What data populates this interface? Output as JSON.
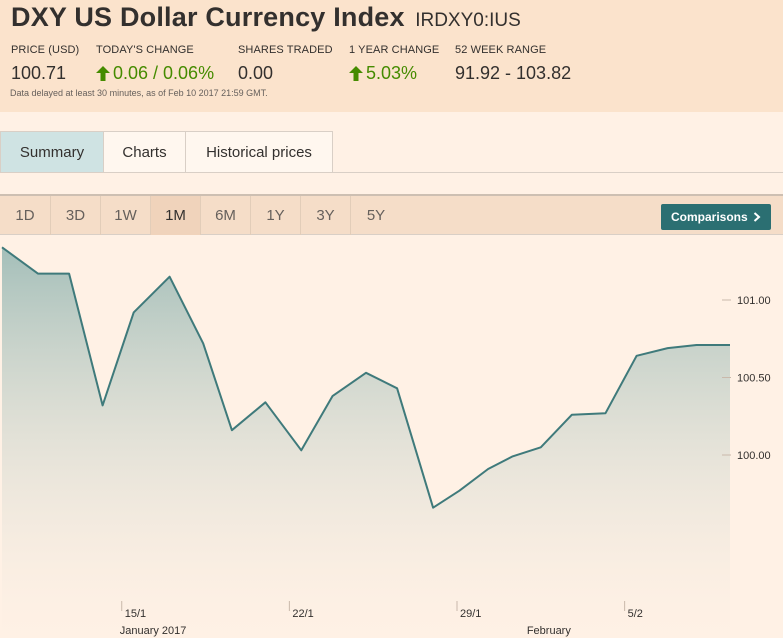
{
  "header": {
    "title": "DXY US Dollar Currency Index",
    "symbol": "IRDXY0:IUS",
    "stats": [
      {
        "label": "PRICE (USD)",
        "value": "100.71",
        "direction": "none"
      },
      {
        "label": "TODAY'S CHANGE",
        "value": "0.06 / 0.06%",
        "direction": "up"
      },
      {
        "label": "SHARES TRADED",
        "value": "0.00",
        "direction": "none"
      },
      {
        "label": "1 YEAR CHANGE",
        "value": "5.03%",
        "direction": "up"
      },
      {
        "label": "52 WEEK RANGE",
        "value": "91.92 - 103.82",
        "direction": "none"
      }
    ],
    "delay_note": "Data delayed at least 30 minutes, as of Feb 10 2017 21:59 GMT."
  },
  "tabs": [
    {
      "label": "Summary",
      "active": true
    },
    {
      "label": "Charts",
      "active": false
    },
    {
      "label": "Historical prices",
      "active": false
    }
  ],
  "ranges": [
    {
      "label": "1D",
      "active": false
    },
    {
      "label": "3D",
      "active": false
    },
    {
      "label": "1W",
      "active": false
    },
    {
      "label": "1M",
      "active": true
    },
    {
      "label": "6M",
      "active": false
    },
    {
      "label": "1Y",
      "active": false
    },
    {
      "label": "3Y",
      "active": false
    },
    {
      "label": "5Y",
      "active": false
    }
  ],
  "comparisons": {
    "label": "Comparisons",
    "icon": "chevron-right-icon"
  },
  "colors": {
    "up": "#458b00",
    "line": "#3f7a7b",
    "accent": "#2b6f72"
  },
  "chart_data": {
    "type": "area",
    "title": "",
    "xlabel": "",
    "ylabel": "",
    "ylim": [
      99.5,
      101.4
    ],
    "y_ticks": [
      {
        "label": "101.00",
        "value": 101.0
      },
      {
        "label": "100.50",
        "value": 100.5
      },
      {
        "label": "100.00",
        "value": 100.0
      }
    ],
    "x_ticks": [
      {
        "label": "15/1",
        "day": 5
      },
      {
        "label": "22/1",
        "day": 12
      },
      {
        "label": "29/1",
        "day": 19
      },
      {
        "label": "5/2",
        "day": 26
      }
    ],
    "month_labels": [
      {
        "label": "January 2017",
        "day": 5
      },
      {
        "label": "February",
        "day": 22
      }
    ],
    "x": [
      "2017-01-10",
      "2017-01-11",
      "2017-01-12",
      "2017-01-13",
      "2017-01-16",
      "2017-01-17",
      "2017-01-18",
      "2017-01-19",
      "2017-01-20",
      "2017-01-23",
      "2017-01-24",
      "2017-01-25",
      "2017-01-26",
      "2017-01-27",
      "2017-01-30",
      "2017-01-31",
      "2017-02-01",
      "2017-02-02",
      "2017-02-03",
      "2017-02-06",
      "2017-02-07",
      "2017-02-08",
      "2017-02-09",
      "2017-02-10"
    ],
    "x_day": [
      0.0,
      1.5,
      2.8,
      4.2,
      5.5,
      7.0,
      8.4,
      9.6,
      11.0,
      12.5,
      13.8,
      15.2,
      16.5,
      18.0,
      19.1,
      20.3,
      21.3,
      22.5,
      23.8,
      25.2,
      26.5,
      27.8,
      29.0,
      30.4
    ],
    "values": [
      101.34,
      101.17,
      101.17,
      100.32,
      100.92,
      101.15,
      100.72,
      100.16,
      100.34,
      100.03,
      100.38,
      100.53,
      100.43,
      99.66,
      99.77,
      99.91,
      99.99,
      100.05,
      100.26,
      100.27,
      100.64,
      100.69,
      100.71,
      100.71
    ],
    "grid": false,
    "legend": "none"
  }
}
